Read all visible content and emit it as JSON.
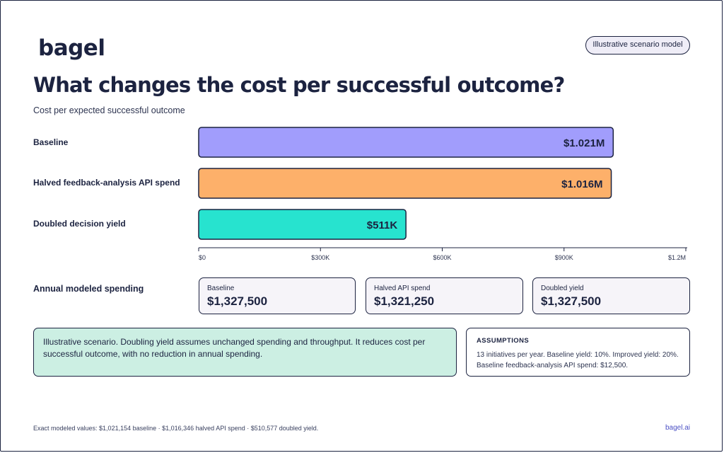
{
  "brand": {
    "logo": "bagel",
    "site": "bagel.ai"
  },
  "badge": "Illustrative scenario model",
  "title": "What changes the cost per successful outcome?",
  "subtitle": "Cost per expected successful outcome",
  "chart_data": {
    "type": "bar",
    "orientation": "horizontal",
    "categories": [
      "Baseline",
      "Halved feedback-analysis API spend",
      "Doubled decision yield"
    ],
    "values": [
      1021154,
      1016346,
      510577
    ],
    "value_labels": [
      "$1.021M",
      "$1.016M",
      "$511K"
    ],
    "colors": [
      "#a19dfc",
      "#fdb06a",
      "#27e3cf"
    ],
    "xlim": [
      0,
      1200000
    ],
    "xticks": [
      0,
      300000,
      600000,
      900000,
      1200000
    ],
    "xtick_labels": [
      "$0",
      "$300K",
      "$600K",
      "$900K",
      "$1.2M"
    ],
    "grid": false,
    "legend": "none"
  },
  "annual": {
    "label": "Annual modeled spending",
    "cards": [
      {
        "label": "Baseline",
        "value": "$1,327,500"
      },
      {
        "label": "Halved API spend",
        "value": "$1,321,250"
      },
      {
        "label": "Doubled yield",
        "value": "$1,327,500"
      }
    ]
  },
  "note": "Illustrative scenario. Doubling yield assumes unchanged spending and throughput. It reduces cost per successful outcome, with no reduction in annual spending.",
  "assumptions": {
    "heading": "ASSUMPTIONS",
    "text": "13 initiatives per year. Baseline yield: 10%. Improved yield: 20%. Baseline feedback-analysis API spend: $12,500."
  },
  "footer": "Exact modeled values: $1,021,154 baseline · $1,016,346 halved API spend · $510,577 doubled yield.",
  "colors": {
    "ink": "#1c2340",
    "note_bg": "#ccefe3",
    "card_bg": "#f6f4f9",
    "link": "#4a4fc4"
  }
}
